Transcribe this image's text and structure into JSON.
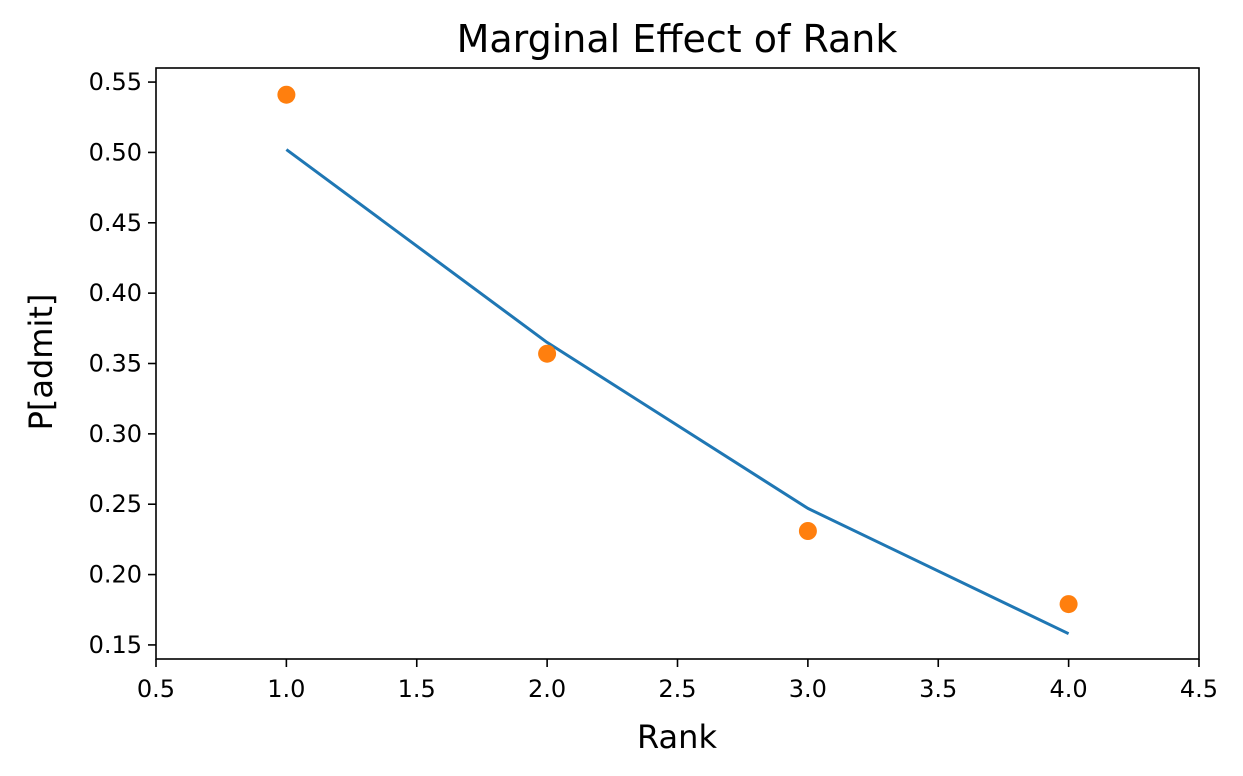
{
  "chart_data": {
    "type": "line",
    "title": "Marginal Effect of Rank",
    "xlabel": "Rank",
    "ylabel": "P[admit]",
    "xlim": [
      0.5,
      4.5
    ],
    "ylim": [
      0.14,
      0.56
    ],
    "x_ticks": [
      "0.5",
      "1.0",
      "1.5",
      "2.0",
      "2.5",
      "3.0",
      "3.5",
      "4.0",
      "4.5"
    ],
    "y_ticks": [
      "0.15",
      "0.20",
      "0.25",
      "0.30",
      "0.35",
      "0.40",
      "0.45",
      "0.50",
      "0.55"
    ],
    "grid": false,
    "series": [
      {
        "kind": "line",
        "color": "#1f77b4",
        "x": [
          1.0,
          2.0,
          3.0,
          4.0
        ],
        "values": [
          0.502,
          0.365,
          0.247,
          0.158
        ]
      },
      {
        "kind": "scatter",
        "color": "#ff7f0e",
        "x": [
          1.0,
          2.0,
          3.0,
          4.0
        ],
        "values": [
          0.541,
          0.357,
          0.231,
          0.179
        ]
      }
    ]
  }
}
